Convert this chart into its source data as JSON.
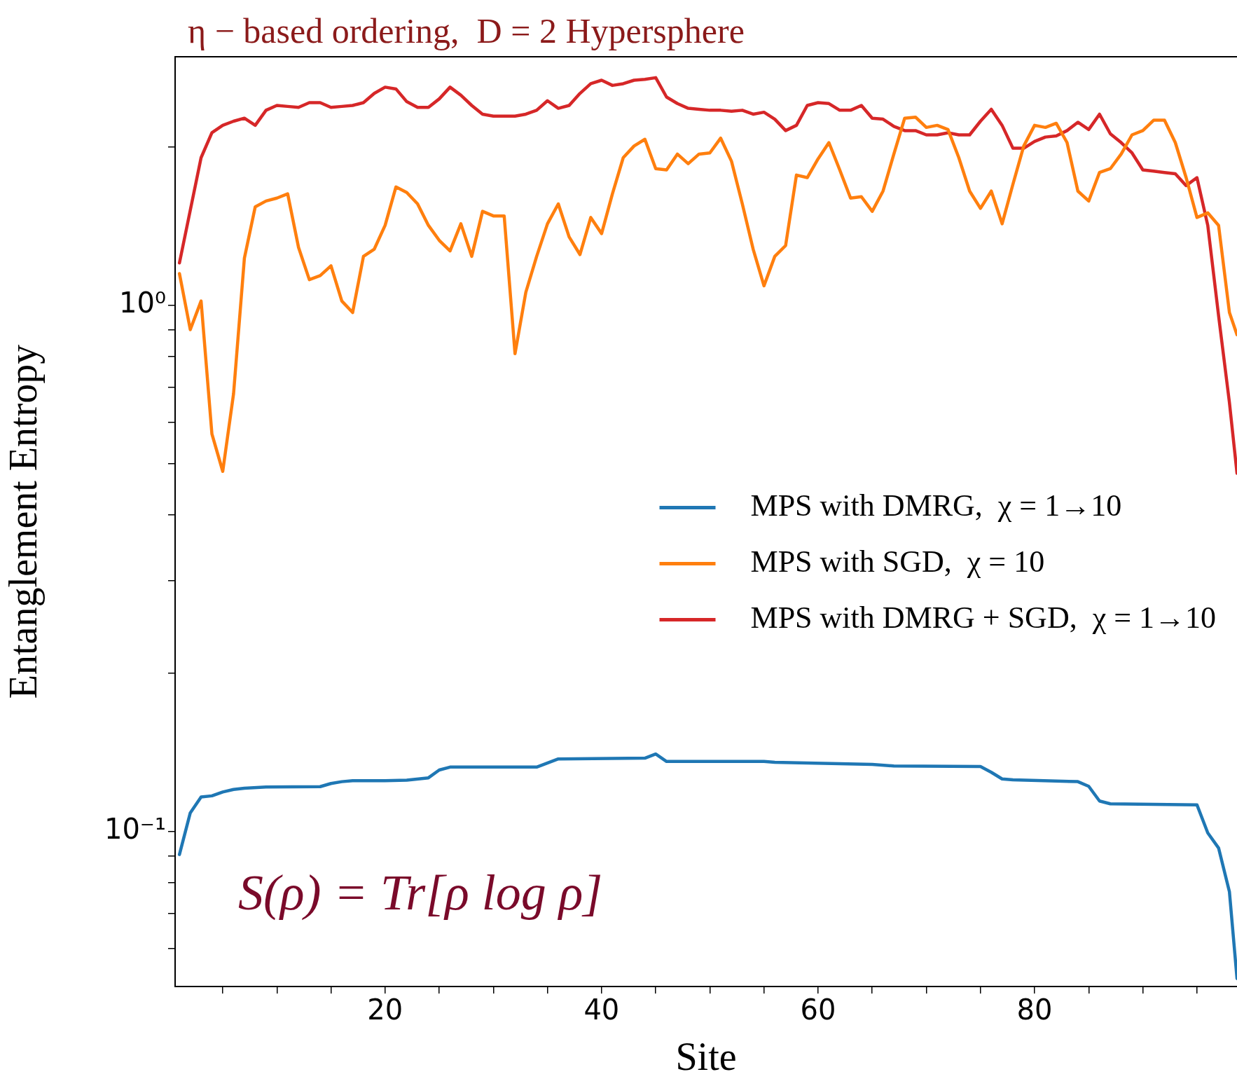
{
  "chart_data": {
    "type": "line",
    "title": "η − based ordering,  D = 2 Hypersphere",
    "xlabel": "Site",
    "ylabel": "Entanglement Entropy",
    "annotations": [
      "S(ρ) = Tr[ρ log ρ]"
    ],
    "log": "y",
    "grid": false,
    "legend": "center right",
    "marker": "none",
    "line_style": "solid",
    "xlim": [
      0.6,
      98.7
    ],
    "ylim": [
      0.0508,
      2.97
    ],
    "xticks": [
      {
        "value": 5,
        "label": null
      },
      {
        "value": 10,
        "label": null
      },
      {
        "value": 15,
        "label": null
      },
      20,
      {
        "value": 25,
        "label": null
      },
      {
        "value": 30,
        "label": null
      },
      {
        "value": 35,
        "label": null
      },
      40,
      {
        "value": 45,
        "label": null
      },
      {
        "value": 50,
        "label": null
      },
      {
        "value": 55,
        "label": null
      },
      60,
      {
        "value": 65,
        "label": null
      },
      {
        "value": 70,
        "label": null
      },
      {
        "value": 75,
        "label": null
      },
      80,
      {
        "value": 85,
        "label": null
      },
      {
        "value": 90,
        "label": null
      },
      {
        "value": 95,
        "label": null
      }
    ],
    "yticks": [
      {
        "value": 0.06,
        "label": null
      },
      {
        "value": 0.07,
        "label": null
      },
      {
        "value": 0.08,
        "label": null
      },
      {
        "value": 0.09,
        "label": null
      },
      {
        "value": 0.1,
        "label": "10⁻¹"
      },
      {
        "value": 0.2,
        "label": null
      },
      {
        "value": 0.3,
        "label": null
      },
      {
        "value": 0.4,
        "label": null
      },
      {
        "value": 0.5,
        "label": null
      },
      {
        "value": 0.6,
        "label": null
      },
      {
        "value": 0.7,
        "label": null
      },
      {
        "value": 0.8,
        "label": null
      },
      {
        "value": 0.9,
        "label": null
      },
      {
        "value": 1,
        "label": "10⁰"
      },
      {
        "value": 2,
        "label": null
      }
    ],
    "series": [
      {
        "name": "MPS with DMRG,  χ = 1→10",
        "color": "#1f77b4",
        "x": [
          1,
          2,
          3,
          4,
          5,
          6,
          7,
          9,
          14,
          15,
          16,
          17,
          20,
          22,
          24,
          25,
          26,
          30,
          34,
          36,
          44,
          45,
          46,
          55,
          56,
          65,
          67,
          75,
          76,
          77,
          78,
          84,
          85,
          86,
          87,
          95,
          96,
          97,
          98,
          98.7
        ],
        "values": [
          0.0905,
          0.1086,
          0.1164,
          0.117,
          0.119,
          0.1203,
          0.121,
          0.1216,
          0.1218,
          0.1235,
          0.1245,
          0.125,
          0.125,
          0.1253,
          0.1266,
          0.131,
          0.1327,
          0.1327,
          0.1327,
          0.1375,
          0.138,
          0.1405,
          0.136,
          0.136,
          0.1355,
          0.1343,
          0.1333,
          0.133,
          0.1297,
          0.126,
          0.1255,
          0.1245,
          0.122,
          0.1144,
          0.113,
          0.1125,
          0.0995,
          0.0931,
          0.0769,
          0.0526
        ]
      },
      {
        "name": "MPS with SGD,  χ = 10",
        "color": "#ff7f0e",
        "x": [
          1,
          2,
          3,
          4,
          5,
          6,
          7,
          8,
          9,
          10,
          11,
          12,
          13,
          14,
          15,
          16,
          17,
          18,
          19,
          20,
          21,
          22,
          23,
          24,
          25,
          26,
          27,
          28,
          29,
          30,
          31,
          32,
          33,
          34,
          35,
          36,
          37,
          38,
          39,
          40,
          41,
          42,
          43,
          44,
          45,
          46,
          47,
          48,
          49,
          50,
          51,
          52,
          53,
          54,
          55,
          56,
          57,
          58,
          59,
          60,
          61,
          62,
          63,
          64,
          65,
          66,
          67,
          68,
          69,
          70,
          71,
          72,
          73,
          74,
          75,
          76,
          77,
          78,
          79,
          80,
          81,
          82,
          83,
          84,
          85,
          86,
          87,
          88,
          89,
          90,
          91,
          92,
          93,
          94,
          95,
          96,
          97,
          98,
          98.7
        ],
        "values": [
          1.15,
          0.9,
          1.02,
          0.57,
          0.484,
          0.68,
          1.23,
          1.54,
          1.58,
          1.6,
          1.63,
          1.29,
          1.12,
          1.14,
          1.19,
          1.02,
          0.97,
          1.24,
          1.28,
          1.42,
          1.68,
          1.64,
          1.56,
          1.42,
          1.33,
          1.27,
          1.43,
          1.24,
          1.51,
          1.48,
          1.48,
          0.81,
          1.06,
          1.24,
          1.43,
          1.56,
          1.35,
          1.25,
          1.47,
          1.37,
          1.63,
          1.91,
          2.01,
          2.07,
          1.82,
          1.81,
          1.94,
          1.86,
          1.94,
          1.95,
          2.08,
          1.88,
          1.56,
          1.28,
          1.09,
          1.24,
          1.3,
          1.77,
          1.75,
          1.9,
          2.04,
          1.81,
          1.6,
          1.61,
          1.51,
          1.65,
          1.94,
          2.27,
          2.28,
          2.18,
          2.2,
          2.16,
          1.91,
          1.65,
          1.53,
          1.65,
          1.43,
          1.7,
          2.01,
          2.2,
          2.18,
          2.22,
          2.04,
          1.65,
          1.58,
          1.79,
          1.82,
          1.94,
          2.11,
          2.15,
          2.25,
          2.25,
          2.04,
          1.75,
          1.47,
          1.5,
          1.42,
          0.97,
          0.88
        ]
      },
      {
        "name": "MPS with DMRG + SGD,  χ = 1→10",
        "color": "#d62728",
        "x": [
          1,
          3,
          4,
          5,
          6,
          7,
          8,
          9,
          10,
          11,
          12,
          13,
          14,
          15,
          16,
          17,
          18,
          19,
          20,
          21,
          22,
          23,
          24,
          25,
          26,
          27,
          28,
          29,
          30,
          31,
          32,
          33,
          34,
          35,
          36,
          37,
          38,
          39,
          40,
          41,
          42,
          43,
          44,
          45,
          46,
          47,
          48,
          49,
          50,
          51,
          52,
          53,
          54,
          55,
          56,
          57,
          58,
          59,
          60,
          61,
          62,
          63,
          64,
          65,
          66,
          67,
          68,
          69,
          70,
          71,
          72,
          73,
          74,
          75,
          76,
          77,
          78,
          79,
          80,
          81,
          82,
          83,
          84,
          85,
          86,
          87,
          88,
          89,
          90,
          91,
          92,
          93,
          94,
          95,
          96,
          97,
          98,
          98.7
        ],
        "values": [
          1.205,
          1.91,
          2.13,
          2.2,
          2.24,
          2.27,
          2.2,
          2.35,
          2.4,
          2.39,
          2.38,
          2.43,
          2.43,
          2.38,
          2.39,
          2.4,
          2.43,
          2.53,
          2.6,
          2.58,
          2.44,
          2.38,
          2.38,
          2.47,
          2.6,
          2.51,
          2.4,
          2.31,
          2.29,
          2.29,
          2.29,
          2.31,
          2.35,
          2.45,
          2.37,
          2.4,
          2.53,
          2.64,
          2.68,
          2.62,
          2.64,
          2.68,
          2.69,
          2.71,
          2.49,
          2.42,
          2.37,
          2.36,
          2.35,
          2.35,
          2.34,
          2.35,
          2.31,
          2.33,
          2.26,
          2.15,
          2.2,
          2.4,
          2.43,
          2.42,
          2.35,
          2.35,
          2.4,
          2.27,
          2.26,
          2.19,
          2.15,
          2.15,
          2.11,
          2.11,
          2.13,
          2.11,
          2.11,
          2.24,
          2.36,
          2.2,
          1.99,
          1.99,
          2.05,
          2.09,
          2.1,
          2.15,
          2.23,
          2.16,
          2.31,
          2.12,
          2.04,
          1.95,
          1.81,
          1.8,
          1.79,
          1.78,
          1.69,
          1.75,
          1.42,
          0.956,
          0.654,
          0.48
        ]
      }
    ]
  }
}
